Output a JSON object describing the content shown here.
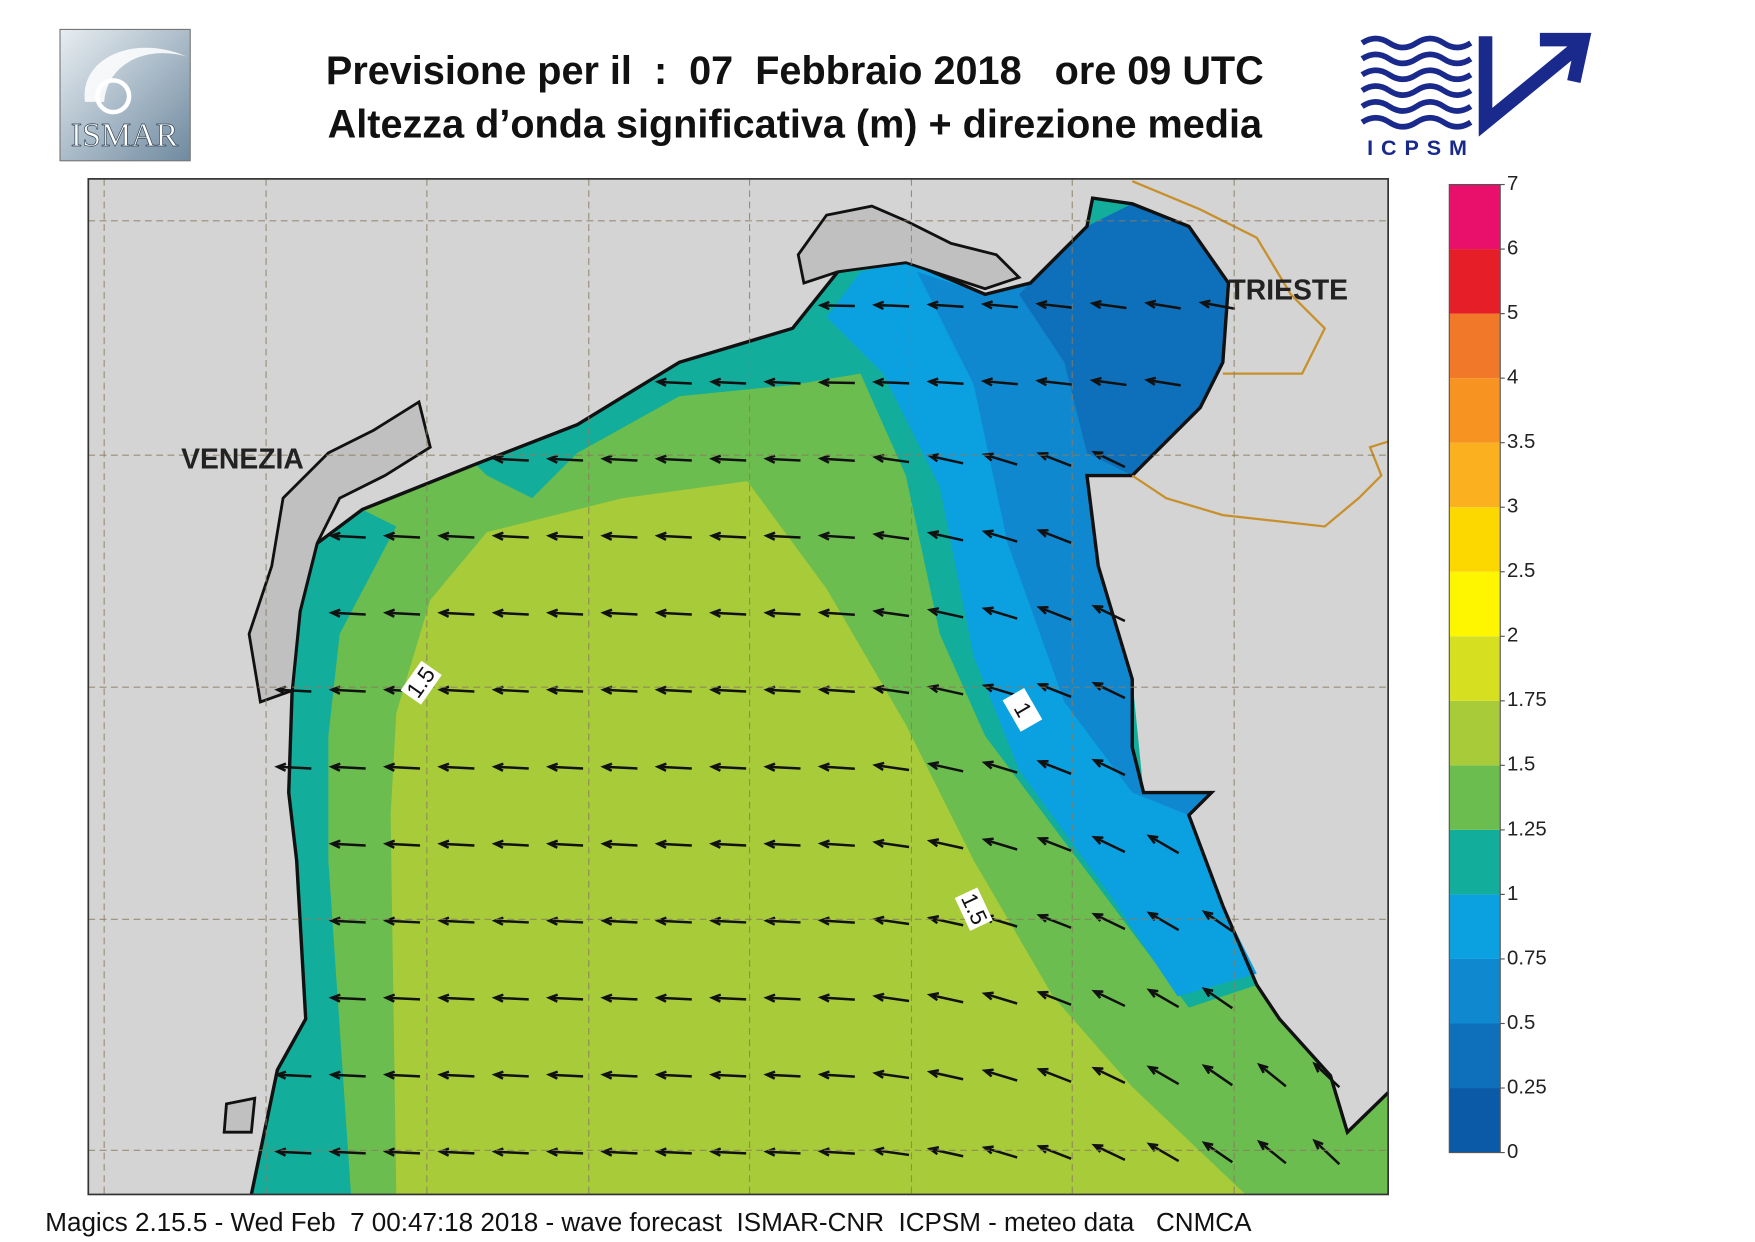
{
  "header": {
    "title_line1": "Previsione per il  :  07  Febbraio 2018   ore 09 UTC",
    "title_line2": "Altezza d’onda significativa (m) + direzione media"
  },
  "logos": {
    "left": "ISMAR",
    "right": "ICPSM"
  },
  "map": {
    "places": [
      {
        "name": "VENEZIA"
      },
      {
        "name": "TRIESTE"
      }
    ],
    "contour_labels": [
      "1.5",
      "1",
      "1.5"
    ]
  },
  "colorbar": {
    "ticks": [
      0,
      0.25,
      0.5,
      0.75,
      1,
      1.25,
      1.5,
      1.75,
      2,
      2.5,
      3,
      3.5,
      4,
      5,
      6,
      7
    ],
    "colors": [
      "#0a5aa8",
      "#0e70bb",
      "#1088d0",
      "#0ba0e0",
      "#13ad9c",
      "#6cbd4f",
      "#a8cb3a",
      "#d6e021",
      "#fdf600",
      "#fdd700",
      "#fbb020",
      "#f79421",
      "#f07828",
      "#e61e28",
      "#e8106a"
    ]
  },
  "footer": "Magics 2.15.5 - Wed Feb  7 00:47:18 2018 - wave forecast  ISMAR-CNR  ICPSM - meteo data   CNMCA"
}
